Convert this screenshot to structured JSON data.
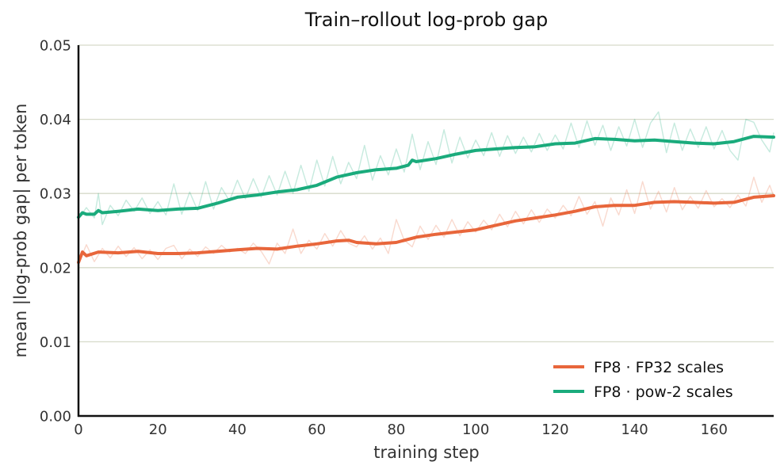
{
  "chart_data": {
    "type": "line",
    "title": "Train–rollout log-prob gap",
    "xlabel": "training step",
    "ylabel": "mean |log-prob gap| per token",
    "xlim": [
      0,
      175
    ],
    "ylim": [
      0,
      0.05
    ],
    "x_ticks": [
      "0",
      "20",
      "40",
      "60",
      "80",
      "100",
      "120",
      "140",
      "160"
    ],
    "x_tick_values": [
      0,
      20,
      40,
      60,
      80,
      100,
      120,
      140,
      160
    ],
    "y_ticks": [
      "0.00",
      "0.01",
      "0.02",
      "0.03",
      "0.04",
      "0.05"
    ],
    "y_tick_values": [
      0,
      0.01,
      0.02,
      0.03,
      0.04,
      0.05
    ],
    "grid": "horizontal",
    "legend_position": "lower-right",
    "series": [
      {
        "name": "FP8 · FP32 scales",
        "color": "#e8663b",
        "smoothed": [
          [
            0,
            0.0207
          ],
          [
            1,
            0.0221
          ],
          [
            2,
            0.0216
          ],
          [
            5,
            0.0221
          ],
          [
            10,
            0.022
          ],
          [
            15,
            0.0222
          ],
          [
            20,
            0.0219
          ],
          [
            25,
            0.0219
          ],
          [
            30,
            0.022
          ],
          [
            35,
            0.0222
          ],
          [
            40,
            0.0224
          ],
          [
            45,
            0.0226
          ],
          [
            50,
            0.0225
          ],
          [
            55,
            0.0229
          ],
          [
            60,
            0.0232
          ],
          [
            65,
            0.0236
          ],
          [
            68,
            0.0237
          ],
          [
            70,
            0.0234
          ],
          [
            75,
            0.0232
          ],
          [
            80,
            0.0234
          ],
          [
            85,
            0.0241
          ],
          [
            90,
            0.0245
          ],
          [
            95,
            0.0248
          ],
          [
            100,
            0.0251
          ],
          [
            105,
            0.0257
          ],
          [
            110,
            0.0263
          ],
          [
            115,
            0.0267
          ],
          [
            120,
            0.0271
          ],
          [
            125,
            0.0276
          ],
          [
            130,
            0.0282
          ],
          [
            135,
            0.0284
          ],
          [
            140,
            0.0284
          ],
          [
            145,
            0.0288
          ],
          [
            150,
            0.0289
          ],
          [
            155,
            0.0288
          ],
          [
            160,
            0.0287
          ],
          [
            165,
            0.0288
          ],
          [
            170,
            0.0295
          ],
          [
            175,
            0.0297
          ]
        ],
        "raw": [
          [
            0,
            0.0205
          ],
          [
            2,
            0.0231
          ],
          [
            4,
            0.0208
          ],
          [
            6,
            0.0226
          ],
          [
            8,
            0.0213
          ],
          [
            10,
            0.0229
          ],
          [
            12,
            0.0215
          ],
          [
            14,
            0.0227
          ],
          [
            16,
            0.0212
          ],
          [
            18,
            0.0224
          ],
          [
            20,
            0.0211
          ],
          [
            22,
            0.0226
          ],
          [
            24,
            0.023
          ],
          [
            26,
            0.0212
          ],
          [
            28,
            0.0225
          ],
          [
            30,
            0.0215
          ],
          [
            32,
            0.0228
          ],
          [
            34,
            0.0219
          ],
          [
            36,
            0.023
          ],
          [
            38,
            0.0221
          ],
          [
            40,
            0.0226
          ],
          [
            42,
            0.0219
          ],
          [
            44,
            0.0233
          ],
          [
            46,
            0.0222
          ],
          [
            48,
            0.0205
          ],
          [
            50,
            0.0233
          ],
          [
            52,
            0.0219
          ],
          [
            54,
            0.0252
          ],
          [
            56,
            0.0219
          ],
          [
            58,
            0.0237
          ],
          [
            60,
            0.0225
          ],
          [
            62,
            0.0246
          ],
          [
            64,
            0.0229
          ],
          [
            66,
            0.025
          ],
          [
            68,
            0.0233
          ],
          [
            70,
            0.0228
          ],
          [
            72,
            0.0243
          ],
          [
            74,
            0.0225
          ],
          [
            76,
            0.024
          ],
          [
            78,
            0.0219
          ],
          [
            80,
            0.0265
          ],
          [
            82,
            0.0237
          ],
          [
            84,
            0.0228
          ],
          [
            86,
            0.0256
          ],
          [
            88,
            0.0238
          ],
          [
            90,
            0.0257
          ],
          [
            92,
            0.0241
          ],
          [
            94,
            0.0265
          ],
          [
            96,
            0.0243
          ],
          [
            98,
            0.0262
          ],
          [
            100,
            0.0248
          ],
          [
            102,
            0.0264
          ],
          [
            104,
            0.0251
          ],
          [
            106,
            0.0272
          ],
          [
            108,
            0.0255
          ],
          [
            110,
            0.0276
          ],
          [
            112,
            0.0259
          ],
          [
            114,
            0.0278
          ],
          [
            116,
            0.0261
          ],
          [
            118,
            0.0279
          ],
          [
            120,
            0.0267
          ],
          [
            122,
            0.0284
          ],
          [
            124,
            0.027
          ],
          [
            126,
            0.0296
          ],
          [
            128,
            0.0272
          ],
          [
            130,
            0.0289
          ],
          [
            132,
            0.0256
          ],
          [
            134,
            0.0294
          ],
          [
            136,
            0.0271
          ],
          [
            138,
            0.0305
          ],
          [
            140,
            0.0273
          ],
          [
            142,
            0.0316
          ],
          [
            144,
            0.0279
          ],
          [
            146,
            0.0303
          ],
          [
            148,
            0.0275
          ],
          [
            150,
            0.0308
          ],
          [
            152,
            0.0278
          ],
          [
            154,
            0.0296
          ],
          [
            156,
            0.028
          ],
          [
            158,
            0.0304
          ],
          [
            160,
            0.0282
          ],
          [
            162,
            0.0293
          ],
          [
            164,
            0.0281
          ],
          [
            166,
            0.0298
          ],
          [
            168,
            0.0283
          ],
          [
            170,
            0.0322
          ],
          [
            172,
            0.0288
          ],
          [
            174,
            0.0311
          ],
          [
            175,
            0.0296
          ]
        ]
      },
      {
        "name": "FP8 · pow-2 scales",
        "color": "#1aab7c",
        "smoothed": [
          [
            0,
            0.0268
          ],
          [
            1,
            0.0274
          ],
          [
            2,
            0.0272
          ],
          [
            4,
            0.0272
          ],
          [
            5,
            0.0277
          ],
          [
            6,
            0.0274
          ],
          [
            10,
            0.0276
          ],
          [
            15,
            0.0279
          ],
          [
            20,
            0.0277
          ],
          [
            25,
            0.0279
          ],
          [
            30,
            0.028
          ],
          [
            35,
            0.0287
          ],
          [
            40,
            0.0295
          ],
          [
            45,
            0.0298
          ],
          [
            50,
            0.0302
          ],
          [
            55,
            0.0305
          ],
          [
            60,
            0.0311
          ],
          [
            65,
            0.0322
          ],
          [
            70,
            0.0328
          ],
          [
            75,
            0.0332
          ],
          [
            80,
            0.0334
          ],
          [
            83,
            0.0338
          ],
          [
            84,
            0.0345
          ],
          [
            85,
            0.0343
          ],
          [
            90,
            0.0347
          ],
          [
            95,
            0.0353
          ],
          [
            100,
            0.0358
          ],
          [
            105,
            0.036
          ],
          [
            110,
            0.0362
          ],
          [
            115,
            0.0363
          ],
          [
            120,
            0.0367
          ],
          [
            125,
            0.0368
          ],
          [
            130,
            0.0374
          ],
          [
            135,
            0.0373
          ],
          [
            140,
            0.0371
          ],
          [
            145,
            0.0372
          ],
          [
            150,
            0.037
          ],
          [
            155,
            0.0368
          ],
          [
            160,
            0.0367
          ],
          [
            165,
            0.037
          ],
          [
            170,
            0.0377
          ],
          [
            175,
            0.0376
          ]
        ],
        "raw": [
          [
            0,
            0.0266
          ],
          [
            2,
            0.0281
          ],
          [
            4,
            0.0267
          ],
          [
            5,
            0.03
          ],
          [
            6,
            0.0258
          ],
          [
            8,
            0.0284
          ],
          [
            10,
            0.027
          ],
          [
            12,
            0.0291
          ],
          [
            14,
            0.0276
          ],
          [
            16,
            0.0294
          ],
          [
            18,
            0.0273
          ],
          [
            20,
            0.0289
          ],
          [
            22,
            0.0271
          ],
          [
            24,
            0.0313
          ],
          [
            26,
            0.0272
          ],
          [
            28,
            0.0302
          ],
          [
            30,
            0.0277
          ],
          [
            32,
            0.0316
          ],
          [
            34,
            0.0279
          ],
          [
            36,
            0.0308
          ],
          [
            38,
            0.029
          ],
          [
            40,
            0.0318
          ],
          [
            42,
            0.0293
          ],
          [
            44,
            0.032
          ],
          [
            46,
            0.0295
          ],
          [
            48,
            0.0324
          ],
          [
            50,
            0.0298
          ],
          [
            52,
            0.033
          ],
          [
            54,
            0.03
          ],
          [
            56,
            0.0338
          ],
          [
            58,
            0.0303
          ],
          [
            60,
            0.0345
          ],
          [
            62,
            0.031
          ],
          [
            64,
            0.035
          ],
          [
            66,
            0.0313
          ],
          [
            68,
            0.0342
          ],
          [
            70,
            0.032
          ],
          [
            72,
            0.0365
          ],
          [
            74,
            0.0318
          ],
          [
            76,
            0.0351
          ],
          [
            78,
            0.0325
          ],
          [
            80,
            0.036
          ],
          [
            82,
            0.0329
          ],
          [
            84,
            0.038
          ],
          [
            86,
            0.0332
          ],
          [
            88,
            0.037
          ],
          [
            90,
            0.0339
          ],
          [
            92,
            0.0386
          ],
          [
            94,
            0.0341
          ],
          [
            96,
            0.0376
          ],
          [
            98,
            0.0348
          ],
          [
            100,
            0.0372
          ],
          [
            102,
            0.0351
          ],
          [
            104,
            0.0382
          ],
          [
            106,
            0.035
          ],
          [
            108,
            0.0378
          ],
          [
            110,
            0.0354
          ],
          [
            112,
            0.0376
          ],
          [
            114,
            0.0356
          ],
          [
            116,
            0.0381
          ],
          [
            118,
            0.0358
          ],
          [
            120,
            0.0379
          ],
          [
            122,
            0.036
          ],
          [
            124,
            0.0395
          ],
          [
            126,
            0.0362
          ],
          [
            128,
            0.0398
          ],
          [
            130,
            0.0365
          ],
          [
            132,
            0.0392
          ],
          [
            134,
            0.0358
          ],
          [
            136,
            0.039
          ],
          [
            138,
            0.0364
          ],
          [
            140,
            0.04
          ],
          [
            142,
            0.0362
          ],
          [
            144,
            0.0395
          ],
          [
            146,
            0.041
          ],
          [
            148,
            0.0355
          ],
          [
            150,
            0.0395
          ],
          [
            152,
            0.0358
          ],
          [
            154,
            0.0387
          ],
          [
            156,
            0.0362
          ],
          [
            158,
            0.039
          ],
          [
            160,
            0.036
          ],
          [
            162,
            0.0385
          ],
          [
            164,
            0.0358
          ],
          [
            166,
            0.0345
          ],
          [
            168,
            0.04
          ],
          [
            170,
            0.0396
          ],
          [
            172,
            0.0372
          ],
          [
            174,
            0.0356
          ],
          [
            175,
            0.0382
          ]
        ]
      }
    ]
  }
}
